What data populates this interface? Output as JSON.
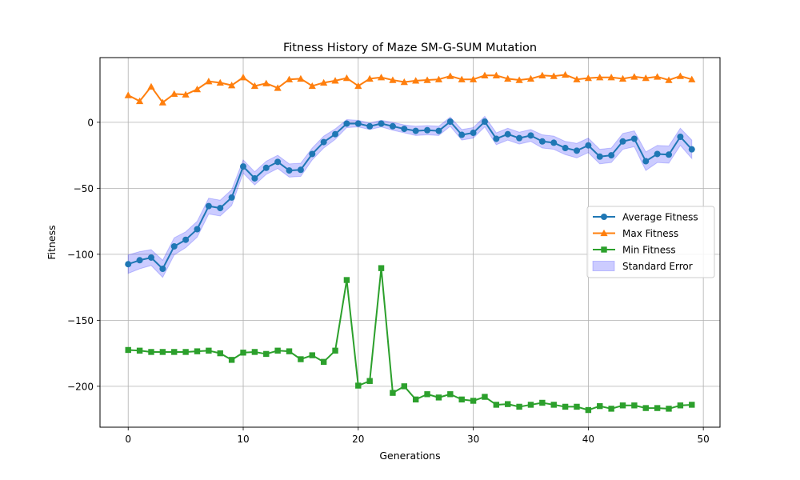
{
  "chart_data": {
    "type": "line",
    "title": "Fitness History of Maze SM-G-SUM Mutation",
    "xlabel": "Generations",
    "ylabel": "Fitness",
    "xlim": [
      -2.45,
      51.45
    ],
    "ylim": [
      -231,
      49
    ],
    "grid": true,
    "legend_position": "center-right",
    "xticks": [
      0,
      10,
      20,
      30,
      40,
      50
    ],
    "yticks": [
      0,
      -50,
      -100,
      -150,
      -200
    ],
    "x": [
      0,
      1,
      2,
      3,
      4,
      5,
      6,
      7,
      8,
      9,
      10,
      11,
      12,
      13,
      14,
      15,
      16,
      17,
      18,
      19,
      20,
      21,
      22,
      23,
      24,
      25,
      26,
      27,
      28,
      29,
      30,
      31,
      32,
      33,
      34,
      35,
      36,
      37,
      38,
      39,
      40,
      41,
      42,
      43,
      44,
      45,
      46,
      47,
      48,
      49
    ],
    "series": [
      {
        "name": "Average Fitness",
        "color": "#1f77b4",
        "marker": "circle",
        "values": [
          -107.5,
          -104.5,
          -102.5,
          -111,
          -94,
          -89,
          -81,
          -63.5,
          -65,
          -57,
          -33.5,
          -42.5,
          -34.5,
          -30,
          -36.5,
          -36,
          -24,
          -15,
          -9,
          -1,
          -1,
          -3,
          -1,
          -3,
          -5,
          -6.5,
          -6,
          -6.5,
          0.5,
          -9.5,
          -8,
          0.5,
          -12.5,
          -9,
          -12,
          -10,
          -14.5,
          -15.5,
          -19.5,
          -21.5,
          -17.5,
          -26,
          -25,
          -14.5,
          -12.5,
          -29.5,
          -24,
          -24.5,
          -11,
          -20.5
        ]
      },
      {
        "name": "Max Fitness",
        "color": "#ff7f0e",
        "marker": "triangle",
        "values": [
          20.5,
          16,
          27,
          15,
          21.5,
          21,
          25,
          31,
          30,
          28,
          34,
          27.5,
          29.5,
          26,
          32.5,
          33,
          27.5,
          30,
          31.5,
          33.5,
          27.5,
          33,
          34,
          32,
          30.5,
          31.5,
          32,
          32.5,
          35,
          32.5,
          32.5,
          35.5,
          35.5,
          33,
          32,
          33,
          35.5,
          35,
          36,
          32.5,
          33.5,
          34,
          34,
          33,
          34.5,
          33.5,
          34.5,
          32,
          35,
          32.5
        ]
      },
      {
        "name": "Min Fitness",
        "color": "#2ca02c",
        "marker": "square",
        "values": [
          -172.5,
          -173,
          -174,
          -174,
          -174,
          -174,
          -173.5,
          -173,
          -175,
          -180,
          -174.5,
          -174,
          -175.5,
          -173,
          -173.5,
          -179.5,
          -176.5,
          -181.5,
          -173,
          -119.5,
          -199.5,
          -196,
          -110.5,
          -205,
          -200,
          -210,
          -206,
          -208.5,
          -206,
          -210,
          -211,
          -208,
          -214,
          -213.5,
          -215.5,
          -214,
          -212.5,
          -214,
          -215.5,
          -215.5,
          -218,
          -215,
          -217,
          -214.5,
          -214.5,
          -216.5,
          -216.5,
          -217,
          -214.5,
          -214
        ]
      }
    ],
    "standard_error": {
      "name": "Standard Error",
      "color": "#0000ff",
      "values": [
        7,
        6.5,
        6,
        6.5,
        6.5,
        6,
        6,
        6,
        6,
        6,
        5,
        5,
        5,
        5,
        5,
        5,
        4.5,
        4.5,
        4,
        3,
        2.5,
        2.5,
        2.5,
        3,
        3,
        3.5,
        3.5,
        3.5,
        3.5,
        4,
        4,
        4,
        4.5,
        4.5,
        4.5,
        4.5,
        5,
        5,
        5,
        5.5,
        5.5,
        5.5,
        5.5,
        6,
        6,
        7,
        6.5,
        6.5,
        6.5,
        7
      ]
    }
  }
}
